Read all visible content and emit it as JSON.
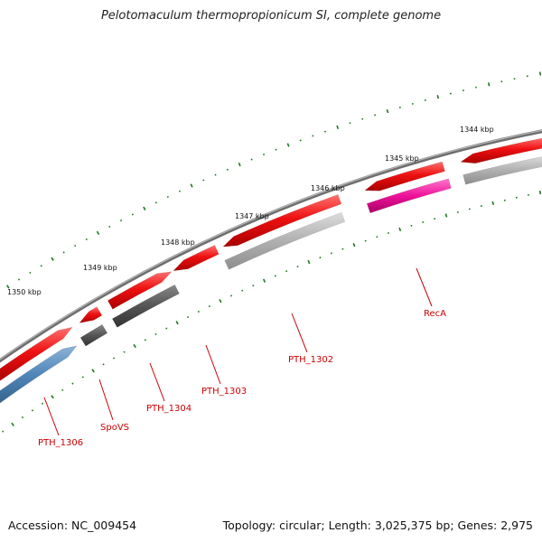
{
  "title": "Pelotomaculum thermopropionicum SI, complete genome",
  "footer": {
    "accession": "Accession: NC_009454",
    "topology": "Topology: circular; Length: 3,025,375 bp; Genes: 2,975"
  },
  "colors": {
    "backbone": "#888888",
    "tick": "#1a7a1a",
    "forward_gene": "#ee1111",
    "reverse_dark": "#555555",
    "reverse_light": "#b0b0b0",
    "reverse_blue": "#4f86b8",
    "reverse_magenta": "#ee1199",
    "label": "#cc0000"
  },
  "ticks": [
    {
      "label": "1344 kbp"
    },
    {
      "label": "1345 kbp"
    },
    {
      "label": "1346 kbp"
    },
    {
      "label": "1347 kbp"
    },
    {
      "label": "1348 kbp"
    },
    {
      "label": "1349 kbp"
    },
    {
      "label": "1350 kbp"
    }
  ],
  "genes": [
    {
      "label": "RecA"
    },
    {
      "label": "PTH_1302"
    },
    {
      "label": "PTH_1303"
    },
    {
      "label": "PTH_1304"
    },
    {
      "label": "SpoVS"
    },
    {
      "label": "PTH_1306"
    }
  ]
}
